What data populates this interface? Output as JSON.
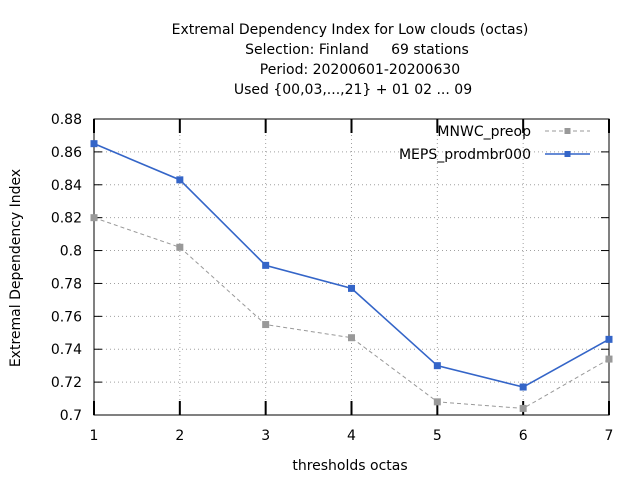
{
  "chart_data": {
    "type": "line",
    "title_lines": [
      "Extremal Dependency Index  for Low clouds (octas)",
      "Selection: Finland     69 stations",
      "Period: 20200601-20200630",
      "Used {00,03,...,21} + 01 02 ... 09"
    ],
    "xlabel": "thresholds octas",
    "ylabel": "Extremal Dependency Index",
    "x": [
      1,
      2,
      3,
      4,
      5,
      6,
      7
    ],
    "xticks": [
      "1",
      "2",
      "3",
      "4",
      "5",
      "6",
      "7"
    ],
    "yticks": [
      "0.7",
      "0.72",
      "0.74",
      "0.76",
      "0.78",
      "0.8",
      "0.82",
      "0.84",
      "0.86",
      "0.88"
    ],
    "xlim": [
      1,
      7
    ],
    "ylim": [
      0.7,
      0.88
    ],
    "grid": true,
    "legend_position": "top-right",
    "series": [
      {
        "name": "MNWC_preop",
        "values": [
          0.82,
          0.802,
          0.755,
          0.747,
          0.708,
          0.704,
          0.734
        ],
        "color": "#999999",
        "style": "dashed"
      },
      {
        "name": "MEPS_prodmbr000",
        "values": [
          0.865,
          0.843,
          0.791,
          0.777,
          0.73,
          0.717,
          0.746
        ],
        "color": "#3465c8",
        "style": "solid"
      }
    ]
  }
}
